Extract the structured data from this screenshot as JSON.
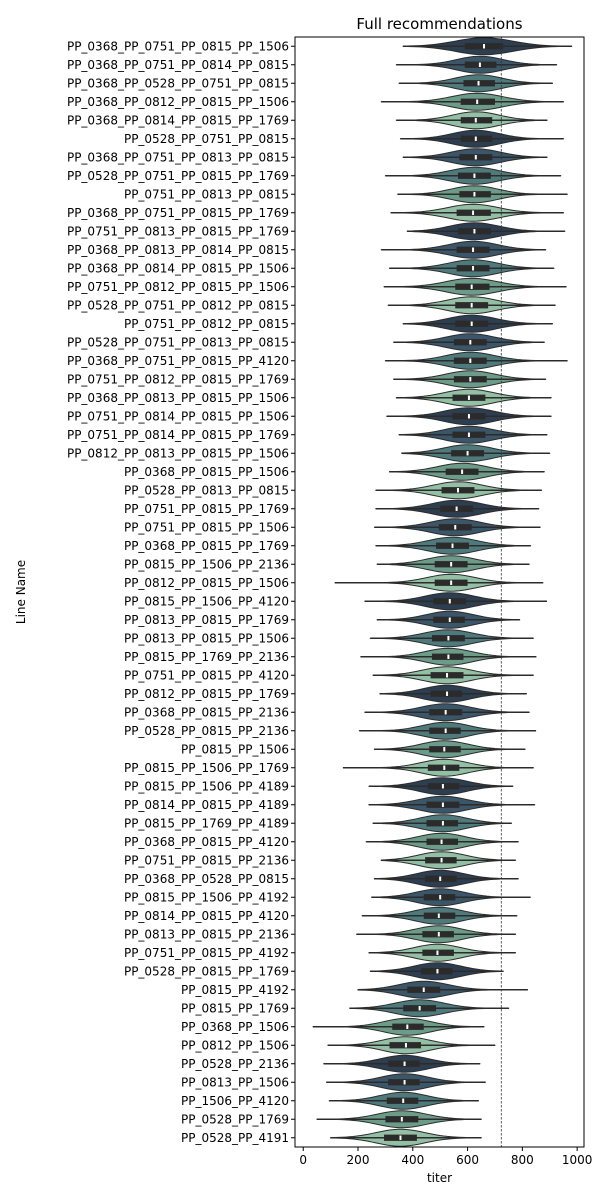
{
  "chart_data": {
    "type": "violin",
    "orientation": "horizontal",
    "title": "Full recommendations",
    "xlabel": "titer",
    "ylabel": "Line Name",
    "xlim": [
      -30,
      1025
    ],
    "xticks": [
      0,
      200,
      400,
      600,
      800,
      1000
    ],
    "reference_line_x": 723,
    "grid": false,
    "legend": "none",
    "colors": {
      "violin_palette": [
        "#2c3e50",
        "#3b5668",
        "#4f7a7c",
        "#6c9b8a",
        "#93bfa5"
      ],
      "box": "#2b2b2b",
      "median": "#ffffff",
      "outline": "#2b2b2b",
      "reference_line": "#333333"
    },
    "series": [
      {
        "label": "PP_0368_PP_0751_PP_0815_PP_1506",
        "min": 365,
        "q1": 590,
        "median": 660,
        "q3": 730,
        "max": 980
      },
      {
        "label": "PP_0368_PP_0751_PP_0814_PP_0815",
        "min": 340,
        "q1": 590,
        "median": 645,
        "q3": 705,
        "max": 925
      },
      {
        "label": "PP_0368_PP_0528_PP_0751_PP_0815",
        "min": 350,
        "q1": 585,
        "median": 640,
        "q3": 700,
        "max": 910
      },
      {
        "label": "PP_0368_PP_0812_PP_0815_PP_1506",
        "min": 285,
        "q1": 575,
        "median": 635,
        "q3": 700,
        "max": 950
      },
      {
        "label": "PP_0368_PP_0814_PP_0815_PP_1769",
        "min": 340,
        "q1": 575,
        "median": 630,
        "q3": 690,
        "max": 890
      },
      {
        "label": "PP_0528_PP_0751_PP_0815",
        "min": 355,
        "q1": 575,
        "median": 630,
        "q3": 690,
        "max": 950
      },
      {
        "label": "PP_0368_PP_0751_PP_0813_PP_0815",
        "min": 365,
        "q1": 570,
        "median": 630,
        "q3": 690,
        "max": 890
      },
      {
        "label": "PP_0528_PP_0751_PP_0815_PP_1769",
        "min": 300,
        "q1": 565,
        "median": 625,
        "q3": 685,
        "max": 940
      },
      {
        "label": "PP_0751_PP_0813_PP_0815",
        "min": 345,
        "q1": 570,
        "median": 625,
        "q3": 685,
        "max": 965
      },
      {
        "label": "PP_0368_PP_0751_PP_0815_PP_1769",
        "min": 320,
        "q1": 560,
        "median": 620,
        "q3": 685,
        "max": 950
      },
      {
        "label": "PP_0751_PP_0813_PP_0815_PP_1769",
        "min": 380,
        "q1": 565,
        "median": 625,
        "q3": 685,
        "max": 955
      },
      {
        "label": "PP_0368_PP_0813_PP_0814_PP_0815",
        "min": 285,
        "q1": 560,
        "median": 620,
        "q3": 680,
        "max": 885
      },
      {
        "label": "PP_0368_PP_0814_PP_0815_PP_1506",
        "min": 315,
        "q1": 560,
        "median": 620,
        "q3": 680,
        "max": 915
      },
      {
        "label": "PP_0751_PP_0812_PP_0815_PP_1506",
        "min": 295,
        "q1": 555,
        "median": 615,
        "q3": 680,
        "max": 960
      },
      {
        "label": "PP_0528_PP_0751_PP_0812_PP_0815",
        "min": 310,
        "q1": 555,
        "median": 615,
        "q3": 675,
        "max": 920
      },
      {
        "label": "PP_0751_PP_0812_PP_0815",
        "min": 365,
        "q1": 555,
        "median": 615,
        "q3": 675,
        "max": 910
      },
      {
        "label": "PP_0528_PP_0751_PP_0813_PP_0815",
        "min": 330,
        "q1": 550,
        "median": 610,
        "q3": 670,
        "max": 880
      },
      {
        "label": "PP_0368_PP_0751_PP_0815_PP_4120",
        "min": 300,
        "q1": 550,
        "median": 610,
        "q3": 670,
        "max": 965
      },
      {
        "label": "PP_0751_PP_0812_PP_0815_PP_1769",
        "min": 330,
        "q1": 550,
        "median": 610,
        "q3": 670,
        "max": 885
      },
      {
        "label": "PP_0368_PP_0813_PP_0815_PP_1506",
        "min": 340,
        "q1": 545,
        "median": 605,
        "q3": 665,
        "max": 905
      },
      {
        "label": "PP_0751_PP_0814_PP_0815_PP_1506",
        "min": 305,
        "q1": 545,
        "median": 605,
        "q3": 665,
        "max": 905
      },
      {
        "label": "PP_0751_PP_0814_PP_0815_PP_1769",
        "min": 350,
        "q1": 545,
        "median": 605,
        "q3": 665,
        "max": 890
      },
      {
        "label": "PP_0812_PP_0813_PP_0815_PP_1506",
        "min": 360,
        "q1": 540,
        "median": 600,
        "q3": 660,
        "max": 900
      },
      {
        "label": "PP_0368_PP_0815_PP_1506",
        "min": 315,
        "q1": 520,
        "median": 580,
        "q3": 640,
        "max": 880
      },
      {
        "label": "PP_0528_PP_0813_PP_0815",
        "min": 265,
        "q1": 505,
        "median": 565,
        "q3": 625,
        "max": 870
      },
      {
        "label": "PP_0751_PP_0815_PP_1769",
        "min": 265,
        "q1": 500,
        "median": 560,
        "q3": 620,
        "max": 860
      },
      {
        "label": "PP_0751_PP_0815_PP_1506",
        "min": 260,
        "q1": 495,
        "median": 555,
        "q3": 615,
        "max": 865
      },
      {
        "label": "PP_0368_PP_0815_PP_1769",
        "min": 265,
        "q1": 485,
        "median": 545,
        "q3": 605,
        "max": 830
      },
      {
        "label": "PP_0815_PP_1506_PP_2136",
        "min": 270,
        "q1": 480,
        "median": 540,
        "q3": 600,
        "max": 825
      },
      {
        "label": "PP_0812_PP_0815_PP_1506",
        "min": 115,
        "q1": 480,
        "median": 540,
        "q3": 600,
        "max": 875
      },
      {
        "label": "PP_0815_PP_1506_PP_4120",
        "min": 225,
        "q1": 475,
        "median": 535,
        "q3": 595,
        "max": 890
      },
      {
        "label": "PP_0813_PP_0815_PP_1769",
        "min": 270,
        "q1": 475,
        "median": 535,
        "q3": 590,
        "max": 790
      },
      {
        "label": "PP_0813_PP_0815_PP_1506",
        "min": 245,
        "q1": 470,
        "median": 530,
        "q3": 590,
        "max": 840
      },
      {
        "label": "PP_0815_PP_1769_PP_2136",
        "min": 210,
        "q1": 470,
        "median": 530,
        "q3": 585,
        "max": 850
      },
      {
        "label": "PP_0751_PP_0815_PP_4120",
        "min": 255,
        "q1": 465,
        "median": 525,
        "q3": 585,
        "max": 840
      },
      {
        "label": "PP_0812_PP_0815_PP_1769",
        "min": 280,
        "q1": 465,
        "median": 525,
        "q3": 580,
        "max": 815
      },
      {
        "label": "PP_0368_PP_0815_PP_2136",
        "min": 225,
        "q1": 460,
        "median": 520,
        "q3": 580,
        "max": 825
      },
      {
        "label": "PP_0528_PP_0815_PP_2136",
        "min": 205,
        "q1": 460,
        "median": 520,
        "q3": 575,
        "max": 850
      },
      {
        "label": "PP_0815_PP_1506",
        "min": 260,
        "q1": 460,
        "median": 515,
        "q3": 575,
        "max": 810
      },
      {
        "label": "PP_0815_PP_1506_PP_1769",
        "min": 145,
        "q1": 455,
        "median": 515,
        "q3": 570,
        "max": 840
      },
      {
        "label": "PP_0815_PP_1506_PP_4189",
        "min": 240,
        "q1": 455,
        "median": 510,
        "q3": 570,
        "max": 765
      },
      {
        "label": "PP_0814_PP_0815_PP_4189",
        "min": 240,
        "q1": 450,
        "median": 510,
        "q3": 570,
        "max": 845
      },
      {
        "label": "PP_0815_PP_1769_PP_4189",
        "min": 255,
        "q1": 450,
        "median": 510,
        "q3": 565,
        "max": 760
      },
      {
        "label": "PP_0368_PP_0815_PP_4120",
        "min": 230,
        "q1": 450,
        "median": 505,
        "q3": 565,
        "max": 785
      },
      {
        "label": "PP_0751_PP_0815_PP_2136",
        "min": 285,
        "q1": 445,
        "median": 505,
        "q3": 560,
        "max": 775
      },
      {
        "label": "PP_0368_PP_0528_PP_0815",
        "min": 260,
        "q1": 445,
        "median": 500,
        "q3": 560,
        "max": 785
      },
      {
        "label": "PP_0815_PP_1506_PP_4192",
        "min": 250,
        "q1": 440,
        "median": 500,
        "q3": 555,
        "max": 830
      },
      {
        "label": "PP_0814_PP_0815_PP_4120",
        "min": 215,
        "q1": 440,
        "median": 495,
        "q3": 555,
        "max": 780
      },
      {
        "label": "PP_0813_PP_0815_PP_2136",
        "min": 195,
        "q1": 435,
        "median": 495,
        "q3": 550,
        "max": 775
      },
      {
        "label": "PP_0751_PP_0815_PP_4192",
        "min": 240,
        "q1": 435,
        "median": 490,
        "q3": 550,
        "max": 775
      },
      {
        "label": "PP_0528_PP_0815_PP_1769",
        "min": 245,
        "q1": 430,
        "median": 490,
        "q3": 545,
        "max": 730
      },
      {
        "label": "PP_0815_PP_4192",
        "min": 200,
        "q1": 380,
        "median": 440,
        "q3": 500,
        "max": 820
      },
      {
        "label": "PP_0815_PP_1769",
        "min": 170,
        "q1": 365,
        "median": 425,
        "q3": 485,
        "max": 750
      },
      {
        "label": "PP_0368_PP_1506",
        "min": 35,
        "q1": 325,
        "median": 380,
        "q3": 440,
        "max": 660
      },
      {
        "label": "PP_0812_PP_1506",
        "min": 90,
        "q1": 315,
        "median": 375,
        "q3": 430,
        "max": 700
      },
      {
        "label": "PP_0528_PP_2136",
        "min": 75,
        "q1": 310,
        "median": 370,
        "q3": 425,
        "max": 645
      },
      {
        "label": "PP_0813_PP_1506",
        "min": 85,
        "q1": 310,
        "median": 370,
        "q3": 425,
        "max": 665
      },
      {
        "label": "PP_1506_PP_4120",
        "min": 95,
        "q1": 305,
        "median": 365,
        "q3": 420,
        "max": 640
      },
      {
        "label": "PP_0528_PP_1769",
        "min": 50,
        "q1": 300,
        "median": 360,
        "q3": 420,
        "max": 650
      },
      {
        "label": "PP_0528_PP_4191",
        "min": 100,
        "q1": 295,
        "median": 355,
        "q3": 415,
        "max": 650
      }
    ]
  }
}
